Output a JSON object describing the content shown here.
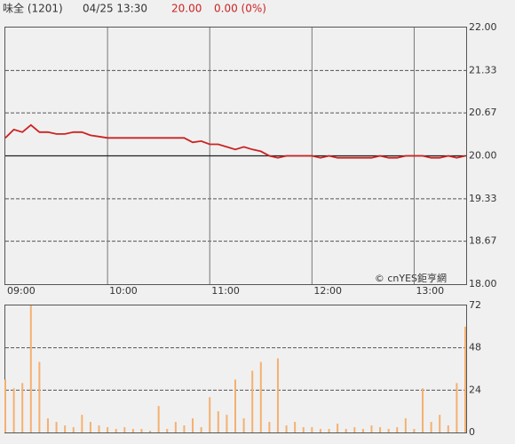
{
  "header": {
    "name": "味全 (1201)",
    "time": "04/25 13:30",
    "price": "20.00",
    "change": "0.00 (0%)"
  },
  "watermark": "© cnYES鉅亨網",
  "chart_data": [
    {
      "type": "line",
      "color": "#cc2222",
      "reference": 20,
      "x": [
        "09:00",
        "09:05",
        "09:10",
        "09:15",
        "09:20",
        "09:25",
        "09:30",
        "09:35",
        "09:40",
        "09:45",
        "09:50",
        "09:55",
        "10:00",
        "10:05",
        "10:10",
        "10:15",
        "10:20",
        "10:25",
        "10:30",
        "10:35",
        "10:40",
        "10:45",
        "10:50",
        "10:55",
        "11:00",
        "11:05",
        "11:10",
        "11:15",
        "11:20",
        "11:25",
        "11:30",
        "11:35",
        "11:40",
        "11:45",
        "11:50",
        "11:55",
        "12:00",
        "12:05",
        "12:10",
        "12:15",
        "12:20",
        "12:25",
        "12:30",
        "12:35",
        "12:40",
        "12:45",
        "12:50",
        "12:55",
        "13:00",
        "13:05",
        "13:10",
        "13:15",
        "13:20",
        "13:25",
        "13:30"
      ],
      "values": [
        20.28,
        20.41,
        20.37,
        20.48,
        20.37,
        20.37,
        20.34,
        20.34,
        20.37,
        20.37,
        20.32,
        20.3,
        20.28,
        20.28,
        20.28,
        20.28,
        20.28,
        20.28,
        20.28,
        20.28,
        20.28,
        20.28,
        20.21,
        20.23,
        20.18,
        20.18,
        20.14,
        20.1,
        20.14,
        20.1,
        20.07,
        20.0,
        19.97,
        20.0,
        20.0,
        20.0,
        20.0,
        19.97,
        20.0,
        19.97,
        19.97,
        19.97,
        19.97,
        19.97,
        20.0,
        19.97,
        19.97,
        20.0,
        20.0,
        20.0,
        19.97,
        19.97,
        20.0,
        19.97,
        20.0
      ],
      "xlim": [
        "09:00",
        "13:30"
      ],
      "xticks": [
        "09:00",
        "10:00",
        "11:00",
        "12:00",
        "13:00"
      ],
      "ylim": [
        18,
        22
      ],
      "yticks": [
        {
          "value": 18,
          "label": "18.00"
        },
        18.67,
        19.33,
        {
          "value": 20,
          "label": "20.00"
        },
        20.67,
        21.33,
        {
          "value": 22,
          "label": "22.00"
        }
      ],
      "grid": true
    },
    {
      "type": "bar",
      "color": "#f5b070",
      "x": [
        "09:00",
        "09:05",
        "09:10",
        "09:15",
        "09:20",
        "09:25",
        "09:30",
        "09:35",
        "09:40",
        "09:45",
        "09:50",
        "09:55",
        "10:00",
        "10:05",
        "10:10",
        "10:15",
        "10:20",
        "10:25",
        "10:30",
        "10:35",
        "10:40",
        "10:45",
        "10:50",
        "10:55",
        "11:00",
        "11:05",
        "11:10",
        "11:15",
        "11:20",
        "11:25",
        "11:30",
        "11:35",
        "11:40",
        "11:45",
        "11:50",
        "11:55",
        "12:00",
        "12:05",
        "12:10",
        "12:15",
        "12:20",
        "12:25",
        "12:30",
        "12:35",
        "12:40",
        "12:45",
        "12:50",
        "12:55",
        "13:00",
        "13:05",
        "13:10",
        "13:15",
        "13:20",
        "13:25",
        "13:30"
      ],
      "values": [
        30,
        25,
        28,
        72,
        40,
        8,
        6,
        4,
        3,
        10,
        6,
        4,
        3,
        2,
        3,
        2,
        2,
        1,
        15,
        2,
        6,
        4,
        8,
        3,
        20,
        12,
        10,
        30,
        8,
        35,
        40,
        6,
        42,
        4,
        6,
        3,
        3,
        2,
        2,
        5,
        2,
        3,
        2,
        4,
        3,
        2,
        3,
        8,
        2,
        25,
        6,
        10,
        4,
        28,
        60
      ],
      "xlim": [
        "09:00",
        "13:30"
      ],
      "ylim": [
        0,
        72
      ],
      "yticks": [
        0,
        24,
        48,
        72
      ],
      "grid": true
    }
  ]
}
